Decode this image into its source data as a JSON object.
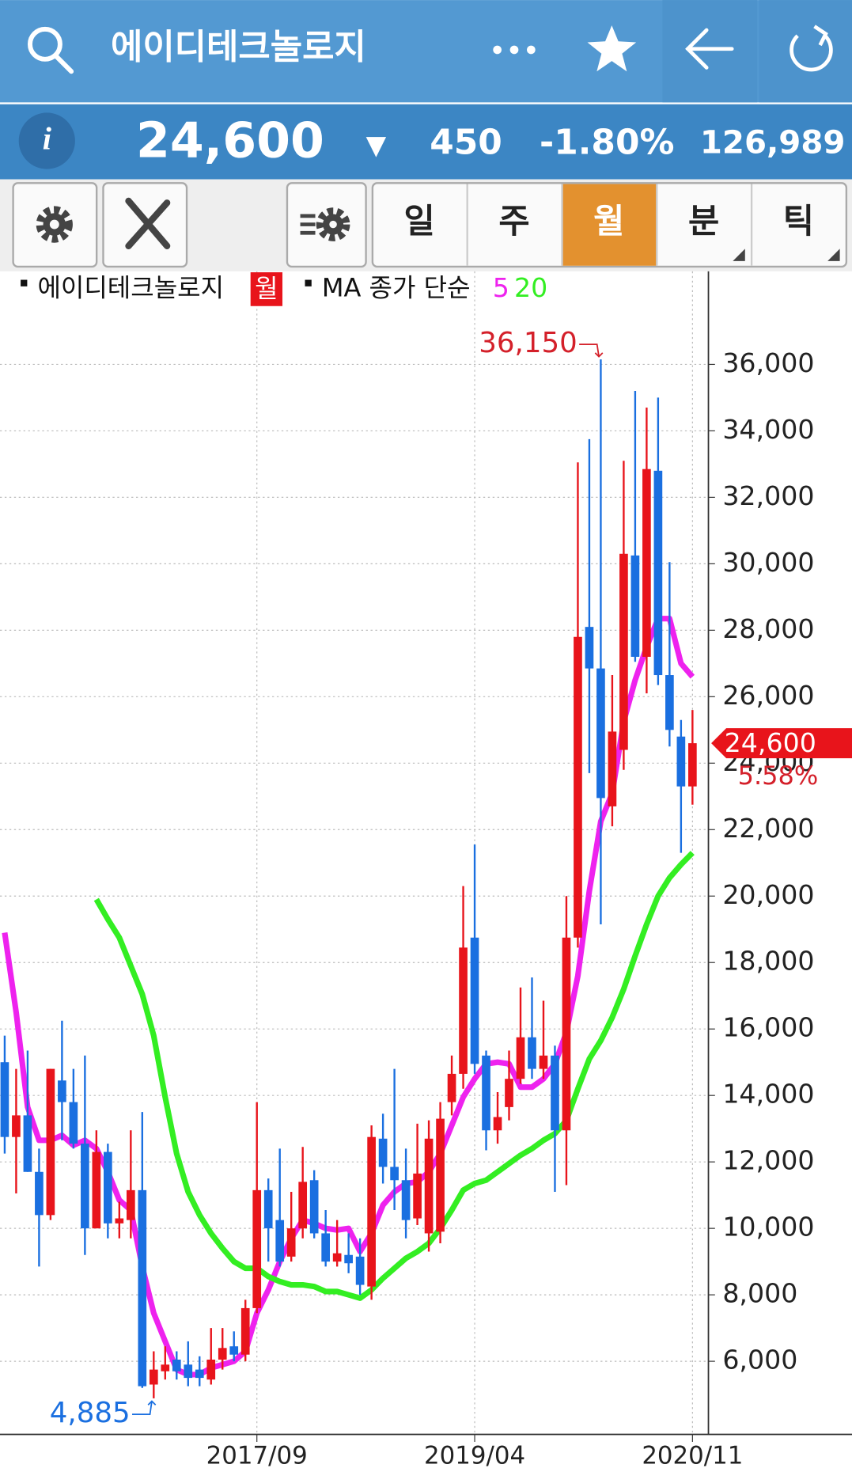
{
  "header": {
    "title": "에이디테크놀로지",
    "price": "24,600",
    "change_arrow": "▼",
    "change": "450",
    "change_pct": "-1.80%",
    "volume": "126,989"
  },
  "tabs": [
    "일",
    "주",
    "월",
    "분",
    "틱"
  ],
  "selected_tab": 2,
  "chart_data": {
    "type": "candlestick",
    "title": "에이디테크놀로지",
    "period_label": "월",
    "ma_label": "MA 종가 단순",
    "up_color": "#e8141b",
    "down_color": "#1a6fe0",
    "categories": [
      null,
      null,
      null,
      null,
      null,
      null,
      null,
      null,
      null,
      null,
      null,
      null,
      null,
      null,
      null,
      null,
      null,
      null,
      null,
      null,
      null,
      null,
      "2017/09",
      null,
      null,
      null,
      null,
      null,
      null,
      null,
      null,
      null,
      null,
      null,
      null,
      null,
      null,
      null,
      null,
      null,
      null,
      "2019/04",
      null,
      null,
      null,
      null,
      null,
      null,
      null,
      null,
      null,
      null,
      null,
      null,
      null,
      null,
      null,
      null,
      null,
      null,
      "2020/11"
    ],
    "open": [
      15000,
      12750,
      13400,
      11700,
      10400,
      14450,
      13800,
      12550,
      10000,
      12300,
      10150,
      10250,
      11150,
      5300,
      5700,
      6050,
      5900,
      5750,
      5450,
      6050,
      6450,
      6200,
      7600,
      11150,
      10250,
      9150,
      10000,
      11450,
      9850,
      9000,
      9200,
      9150,
      8250,
      12700,
      11850,
      11450,
      10300,
      9850,
      9900,
      13800,
      14650,
      18750,
      15200,
      12950,
      13650,
      14500,
      15750,
      14800,
      15200,
      12950,
      18750,
      28100,
      26850,
      22700,
      24400,
      30250,
      27200,
      32800,
      26650,
      24800,
      23300
    ],
    "high": [
      15800,
      14800,
      15350,
      12400,
      14800,
      16250,
      14800,
      15200,
      12950,
      12550,
      10800,
      12950,
      13500,
      6300,
      6450,
      6300,
      6600,
      6150,
      7000,
      7000,
      6900,
      7850,
      13800,
      11500,
      12400,
      11100,
      12450,
      11750,
      10550,
      10250,
      9850,
      9700,
      13100,
      13450,
      14800,
      12400,
      13150,
      13250,
      13800,
      15200,
      20300,
      21550,
      15350,
      14100,
      15350,
      17250,
      17550,
      16850,
      15500,
      20000,
      33050,
      33750,
      36150,
      26650,
      33100,
      35200,
      34700,
      35000,
      30050,
      25300,
      25600
    ],
    "low": [
      12250,
      11050,
      11700,
      8850,
      10250,
      12650,
      12400,
      9200,
      10000,
      9700,
      9700,
      9700,
      5200,
      4885,
      5450,
      5450,
      5250,
      5250,
      5300,
      5750,
      6000,
      6000,
      7450,
      9000,
      8850,
      9000,
      9700,
      9700,
      8850,
      8850,
      8650,
      8000,
      7850,
      11350,
      10550,
      9700,
      10100,
      9300,
      9550,
      13400,
      14200,
      14650,
      12350,
      12550,
      13250,
      14350,
      14500,
      14500,
      11100,
      11300,
      18450,
      23700,
      19150,
      22100,
      23800,
      27050,
      26100,
      26350,
      24500,
      21300,
      22750
    ],
    "close": [
      12750,
      13400,
      11700,
      10400,
      14800,
      13800,
      12550,
      10000,
      12300,
      10150,
      10300,
      11150,
      5250,
      5750,
      5900,
      5700,
      5500,
      5500,
      6050,
      6400,
      6200,
      7600,
      11150,
      10000,
      9000,
      10000,
      11400,
      9850,
      9000,
      9250,
      8950,
      8300,
      12750,
      11850,
      11450,
      10250,
      11650,
      12700,
      13300,
      14650,
      18450,
      14950,
      12950,
      13350,
      14500,
      15750,
      14800,
      15200,
      12950,
      18750,
      27800,
      26850,
      22950,
      24950,
      30300,
      27200,
      32850,
      26650,
      25000,
      23300,
      24600
    ],
    "series": [
      {
        "name": "5",
        "color": "#ee22ee",
        "values": [
          18900,
          16500,
          13650,
          12650,
          12650,
          12800,
          12500,
          12650,
          12400,
          11700,
          10850,
          10550,
          8850,
          7450,
          6600,
          5750,
          5600,
          5600,
          5800,
          5900,
          6000,
          6300,
          7450,
          8150,
          9000,
          9700,
          10250,
          10150,
          10000,
          9950,
          10000,
          9300,
          9850,
          10700,
          11100,
          11350,
          11400,
          11700,
          12250,
          13100,
          13950,
          14500,
          14950,
          15000,
          14950,
          14250,
          14250,
          14500,
          14950,
          15900,
          17600,
          20150,
          22250,
          23100,
          25250,
          26500,
          27500,
          28350,
          28350,
          27000,
          26600
        ]
      },
      {
        "name": "20",
        "color": "#33ee22",
        "values": [
          null,
          null,
          null,
          null,
          null,
          null,
          null,
          null,
          19900,
          19300,
          18750,
          17900,
          17050,
          15800,
          13950,
          12250,
          11100,
          10400,
          9850,
          9400,
          9000,
          8800,
          8800,
          8550,
          8400,
          8300,
          8300,
          8250,
          8100,
          8100,
          8000,
          7900,
          8150,
          8500,
          8800,
          9100,
          9300,
          9550,
          10000,
          10550,
          11150,
          11350,
          11450,
          11700,
          11950,
          12200,
          12400,
          12650,
          12850,
          13250,
          14200,
          15100,
          15650,
          16350,
          17200,
          18200,
          19150,
          20000,
          20550,
          20950,
          21300
        ]
      }
    ],
    "annotations": [
      {
        "text": "36,150",
        "value": 36150
      },
      {
        "text": "4,885",
        "value": 4885
      }
    ],
    "last_price": {
      "value": 24600,
      "label": "24,600",
      "change_label": "5.58%"
    },
    "ylim": [
      3800,
      38800
    ],
    "yticks": [
      {
        "value": 6000,
        "label": "6,000"
      },
      {
        "value": 8000,
        "label": "8,000"
      },
      {
        "value": 10000,
        "label": "10,000"
      },
      {
        "value": 12000,
        "label": "12,000"
      },
      {
        "value": 14000,
        "label": "14,000"
      },
      {
        "value": 16000,
        "label": "16,000"
      },
      {
        "value": 18000,
        "label": "18,000"
      },
      {
        "value": 20000,
        "label": "20,000"
      },
      {
        "value": 22000,
        "label": "22,000"
      },
      {
        "value": 24000,
        "label": "24,000"
      },
      {
        "value": 26000,
        "label": "26,000"
      },
      {
        "value": 28000,
        "label": "28,000"
      },
      {
        "value": 30000,
        "label": "30,000"
      },
      {
        "value": 32000,
        "label": "32,000"
      },
      {
        "value": 34000,
        "label": "34,000"
      },
      {
        "value": 36000,
        "label": "36,000"
      }
    ],
    "grid": true
  }
}
